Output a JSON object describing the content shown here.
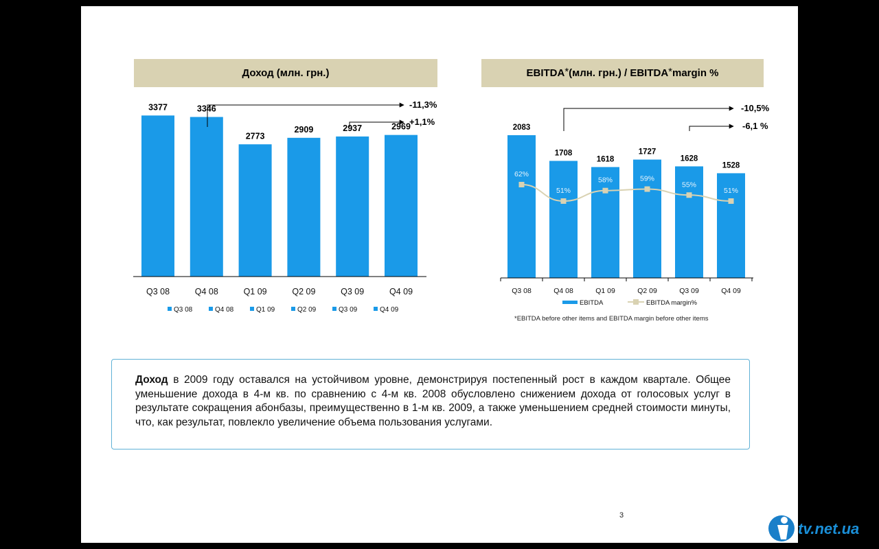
{
  "left_chart": {
    "title": "Доход (млн. грн.)",
    "annotations": [
      "-11,3%",
      "+1,1%"
    ]
  },
  "right_chart": {
    "title_main": "EBITDA",
    "title_star": "*",
    "title_mid": " (млн. грн.) / EBITDA",
    "title_star2": "*",
    "title_end": " margin %",
    "annotations": [
      "-10,5%",
      "-6,1 %"
    ],
    "footnote": "*EBITDA before other items and EBITDA margin before other items"
  },
  "chart_data": [
    {
      "type": "bar",
      "title": "Доход (млн. грн.)",
      "categories": [
        "Q3 08",
        "Q4 08",
        "Q1 09",
        "Q2 09",
        "Q3 09",
        "Q4 09"
      ],
      "values": [
        3377,
        3346,
        2773,
        2909,
        2937,
        2969
      ],
      "legend": [
        "Q3 08",
        "Q4 08",
        "Q1 09",
        "Q2 09",
        "Q3 09",
        "Q4 09"
      ],
      "legend_position": "bottom",
      "ylim": [
        0,
        4000
      ],
      "color": "#1a9ae8"
    },
    {
      "type": "bar",
      "title": "EBITDA* (млн. грн.) / EBITDA* margin %",
      "categories": [
        "Q3 08",
        "Q4 08",
        "Q1 09",
        "Q2 09",
        "Q3 09",
        "Q4 09"
      ],
      "series": [
        {
          "name": "EBITDA",
          "type": "bar",
          "values": [
            2083,
            1708,
            1618,
            1727,
            1628,
            1528
          ],
          "color": "#1a9ae8"
        },
        {
          "name": "EBITDA margin%",
          "type": "line",
          "values": [
            62,
            51,
            58,
            59,
            55,
            51
          ],
          "labels": [
            "62%",
            "51%",
            "58%",
            "59%",
            "55%",
            "51%"
          ],
          "color": "#d9d2b2"
        }
      ],
      "ylim": [
        0,
        2200
      ],
      "legend_position": "bottom"
    }
  ],
  "note": {
    "bold": "Доход",
    "text": " в 2009 году оставался на устойчивом уровне, демонстрируя постепенный  рост в каждом квартале. Общее уменьшение дохода в 4-м кв. по сравнению с 4-м кв. 2008 обусловлено снижением дохода от голосовых услуг в результате сокращения абонбазы, преимущественно в 1-м кв. 2009, а также уменьшением средней стоимости минуты, что, как результат, повлекло увеличение объема пользования услугами."
  },
  "page_number": "3",
  "logo_text": "tv.net.ua"
}
